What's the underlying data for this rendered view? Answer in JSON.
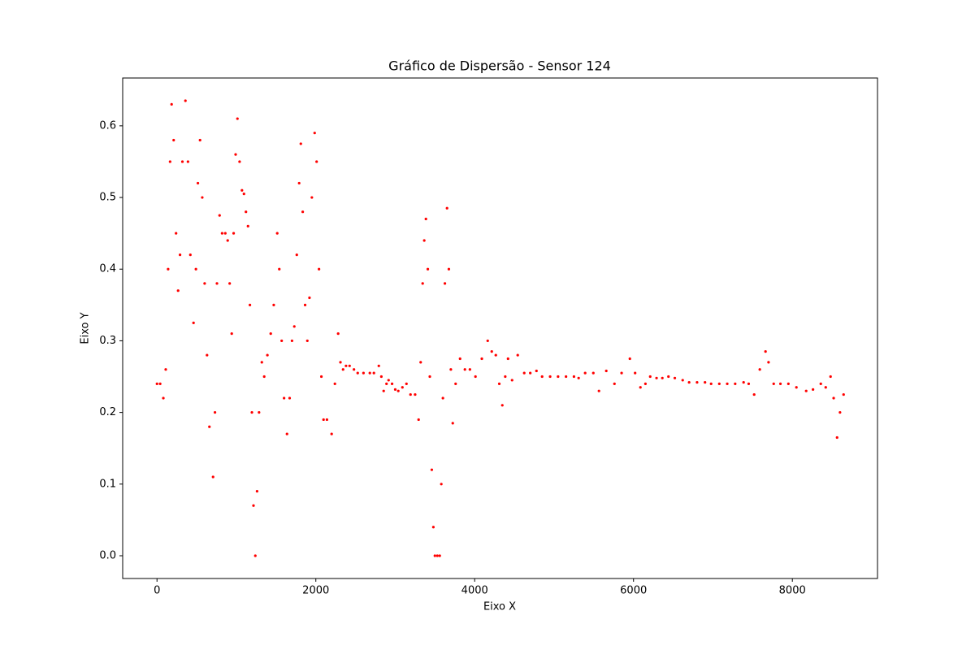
{
  "chart_data": {
    "type": "scatter",
    "title": "Gráfico de Dispersão - Sensor 124",
    "xlabel": "Eixo X",
    "ylabel": "Eixo Y",
    "color": "#ff0000",
    "xlim": [
      -432,
      9072
    ],
    "ylim": [
      -0.03175,
      0.66675
    ],
    "xticks": [
      0,
      2000,
      4000,
      6000,
      8000
    ],
    "yticks": [
      {
        "value": 0,
        "label": "0.0"
      },
      0.1,
      0.2,
      0.3,
      0.4,
      0.5,
      0.6
    ],
    "x": [
      0,
      40,
      80,
      110,
      140,
      165,
      184,
      210,
      240,
      266,
      290,
      320,
      358,
      390,
      420,
      460,
      490,
      515,
      542,
      570,
      600,
      630,
      660,
      706,
      730,
      755,
      788,
      820,
      860,
      890,
      915,
      941,
      965,
      990,
      1013,
      1040,
      1070,
      1095,
      1120,
      1146,
      1170,
      1195,
      1215,
      1238,
      1260,
      1285,
      1320,
      1350,
      1390,
      1432,
      1470,
      1514,
      1540,
      1570,
      1600,
      1637,
      1670,
      1700,
      1729,
      1760,
      1790,
      1811,
      1835,
      1865,
      1893,
      1920,
      1950,
      1985,
      2010,
      2040,
      2070,
      2097,
      2140,
      2199,
      2240,
      2281,
      2310,
      2343,
      2380,
      2425,
      2480,
      2527,
      2600,
      2680,
      2731,
      2793,
      2825,
      2854,
      2890,
      2916,
      2960,
      3000,
      3038,
      3090,
      3141,
      3192,
      3250,
      3294,
      3320,
      3345,
      3365,
      3386,
      3410,
      3435,
      3460,
      3480,
      3499,
      3530,
      3560,
      3580,
      3600,
      3625,
      3652,
      3675,
      3700,
      3724,
      3760,
      3816,
      3877,
      3940,
      4010,
      4090,
      4164,
      4215,
      4266,
      4310,
      4348,
      4385,
      4420,
      4471,
      4542,
      4624,
      4700,
      4778,
      4849,
      4950,
      5050,
      5150,
      5250,
      5309,
      5391,
      5494,
      5565,
      5657,
      5760,
      5850,
      5954,
      6020,
      6087,
      6150,
      6210,
      6290,
      6363,
      6440,
      6520,
      6619,
      6700,
      6800,
      6900,
      6977,
      7080,
      7180,
      7280,
      7386,
      7450,
      7519,
      7590,
      7662,
      7700,
      7765,
      7850,
      7950,
      8051,
      8174,
      8260,
      8358,
      8420,
      8481,
      8520,
      8563,
      8600,
      8645
    ],
    "values": [
      0.24,
      0.24,
      0.22,
      0.26,
      0.4,
      0.55,
      0.63,
      0.58,
      0.45,
      0.37,
      0.42,
      0.55,
      0.635,
      0.55,
      0.42,
      0.325,
      0.4,
      0.52,
      0.58,
      0.5,
      0.38,
      0.28,
      0.18,
      0.11,
      0.2,
      0.38,
      0.475,
      0.45,
      0.45,
      0.44,
      0.38,
      0.31,
      0.45,
      0.56,
      0.61,
      0.55,
      0.51,
      0.505,
      0.48,
      0.46,
      0.35,
      0.2,
      0.07,
      0.0,
      0.09,
      0.2,
      0.27,
      0.25,
      0.28,
      0.31,
      0.35,
      0.45,
      0.4,
      0.3,
      0.22,
      0.17,
      0.22,
      0.3,
      0.32,
      0.42,
      0.52,
      0.575,
      0.48,
      0.35,
      0.3,
      0.36,
      0.5,
      0.59,
      0.55,
      0.4,
      0.25,
      0.19,
      0.19,
      0.17,
      0.24,
      0.31,
      0.27,
      0.26,
      0.265,
      0.265,
      0.26,
      0.255,
      0.255,
      0.255,
      0.255,
      0.265,
      0.25,
      0.23,
      0.24,
      0.245,
      0.24,
      0.232,
      0.23,
      0.235,
      0.24,
      0.225,
      0.225,
      0.19,
      0.27,
      0.38,
      0.44,
      0.47,
      0.4,
      0.25,
      0.12,
      0.04,
      0.0,
      0.0,
      0.0,
      0.1,
      0.22,
      0.38,
      0.485,
      0.4,
      0.26,
      0.185,
      0.24,
      0.275,
      0.26,
      0.26,
      0.25,
      0.275,
      0.3,
      0.285,
      0.28,
      0.24,
      0.21,
      0.25,
      0.275,
      0.245,
      0.28,
      0.255,
      0.255,
      0.258,
      0.25,
      0.25,
      0.25,
      0.25,
      0.25,
      0.248,
      0.255,
      0.255,
      0.23,
      0.258,
      0.24,
      0.255,
      0.275,
      0.255,
      0.235,
      0.24,
      0.25,
      0.248,
      0.248,
      0.25,
      0.248,
      0.245,
      0.242,
      0.242,
      0.242,
      0.24,
      0.24,
      0.24,
      0.24,
      0.242,
      0.24,
      0.225,
      0.26,
      0.285,
      0.27,
      0.24,
      0.24,
      0.24,
      0.235,
      0.23,
      0.232,
      0.24,
      0.235,
      0.25,
      0.22,
      0.165,
      0.2,
      0.225
    ]
  }
}
